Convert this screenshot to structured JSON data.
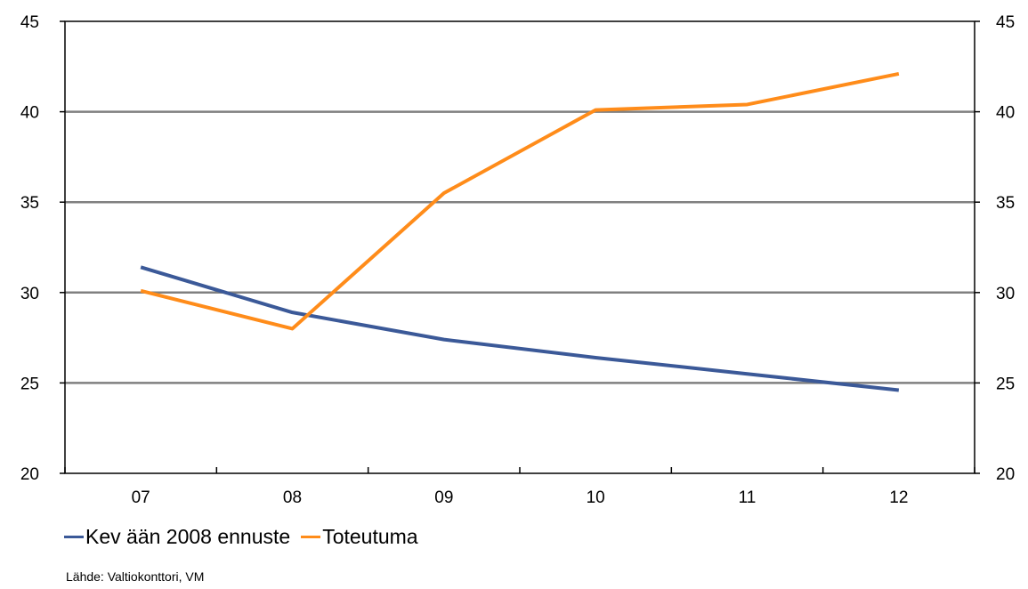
{
  "chart_data": {
    "type": "line",
    "title": "",
    "xlabel": "",
    "ylabel": "",
    "categories": [
      "07",
      "08",
      "09",
      "10",
      "11",
      "12"
    ],
    "ylim": [
      20,
      45
    ],
    "yticks": [
      20,
      25,
      30,
      35,
      40,
      45
    ],
    "secondary_axis": {
      "ylim": [
        20,
        45
      ],
      "yticks": [
        20,
        25,
        30,
        35,
        40,
        45
      ]
    },
    "grid": true,
    "legend_position": "bottom-left",
    "series": [
      {
        "name": "Kev ään 2008 ennuste",
        "color": "#3b5998",
        "values": [
          31.4,
          28.9,
          27.4,
          26.4,
          25.5,
          24.6
        ]
      },
      {
        "name": "Toteutuma",
        "color": "#ff8c1a",
        "values": [
          30.1,
          28.0,
          35.5,
          40.1,
          40.4,
          42.1
        ]
      }
    ]
  },
  "source_text": "Lähde: Valtiokonttori, VM"
}
